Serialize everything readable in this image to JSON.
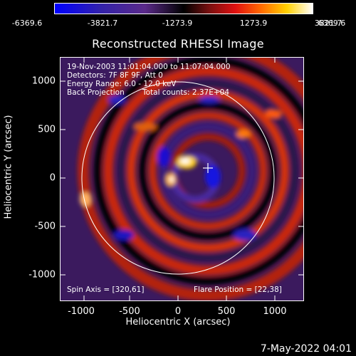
{
  "colorbar": {
    "ticks": [
      "-6369.6",
      "-3821.7",
      "-1273.9",
      "1273.9",
      "3821.7",
      "6369.6"
    ],
    "gradient_stops": [
      "#0000ff",
      "#5b2a8a",
      "#000000",
      "#e01010",
      "#ff6a00",
      "#ffd000",
      "#ffffff"
    ]
  },
  "title": "Reconstructed RHESSI Image",
  "info": {
    "time": "19-Nov-2003 11:01:04.000 to 11:07:04.000",
    "detectors": "Detectors: 7F 8F 9F, Att 0",
    "energy": "Energy Range: 6.0 - 12.0 keV",
    "method": "Back Projection",
    "counts": "Total counts: 2.37E+04",
    "spin_axis": "Spin Axis = [320,61]",
    "flare_position": "Flare Position = [22,38]"
  },
  "axes": {
    "xlabel": "Heliocentric X (arcsec)",
    "ylabel": "Heliocentric Y (arcsec)",
    "xticks": [
      "-1000",
      "-500",
      "0",
      "500",
      "1000"
    ],
    "yticks": [
      "1000",
      "500",
      "0",
      "-500",
      "-1000"
    ]
  },
  "timestamp": "7-May-2022 04:01"
}
